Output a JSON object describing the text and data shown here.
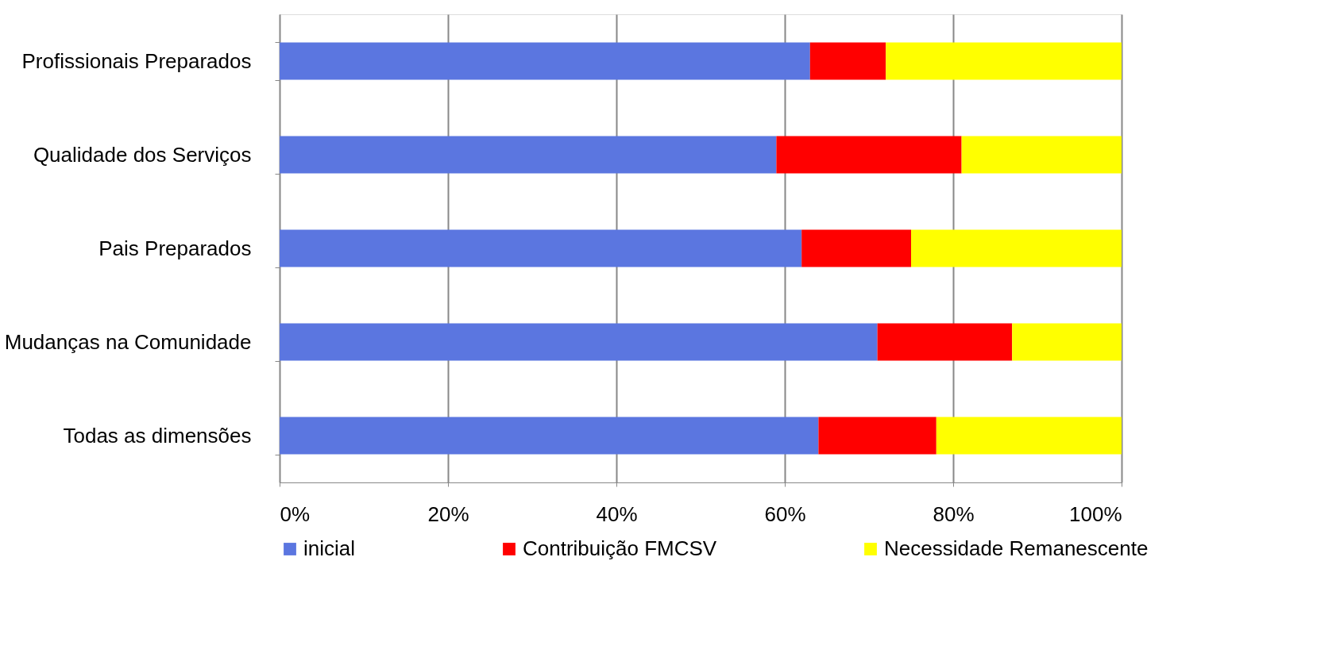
{
  "chart_data": {
    "type": "bar",
    "orientation": "horizontal",
    "stacked": true,
    "categories": [
      "Profissionais Preparados",
      "Qualidade dos Serviços",
      "Pais Preparados",
      "Mudanças na Comunidade",
      "Todas as dimensões"
    ],
    "series": [
      {
        "name": "inicial",
        "color": "#5b76e0",
        "values": [
          63,
          59,
          62,
          71,
          64
        ]
      },
      {
        "name": "Contribuição FMCSV",
        "color": "#ff0000",
        "values": [
          9,
          22,
          13,
          16,
          14
        ]
      },
      {
        "name": "Necessidade Remanescente",
        "color": "#ffff00",
        "values": [
          28,
          19,
          25,
          13,
          22
        ]
      }
    ],
    "xlim": [
      0,
      100
    ],
    "xticks": [
      {
        "value": 0,
        "label": "0%"
      },
      {
        "value": 20,
        "label": "20%"
      },
      {
        "value": 40,
        "label": "40%"
      },
      {
        "value": 60,
        "label": "60%"
      },
      {
        "value": 80,
        "label": "80%"
      },
      {
        "value": 100,
        "label": "100%"
      }
    ],
    "grid": "x",
    "legend": "bottom"
  }
}
